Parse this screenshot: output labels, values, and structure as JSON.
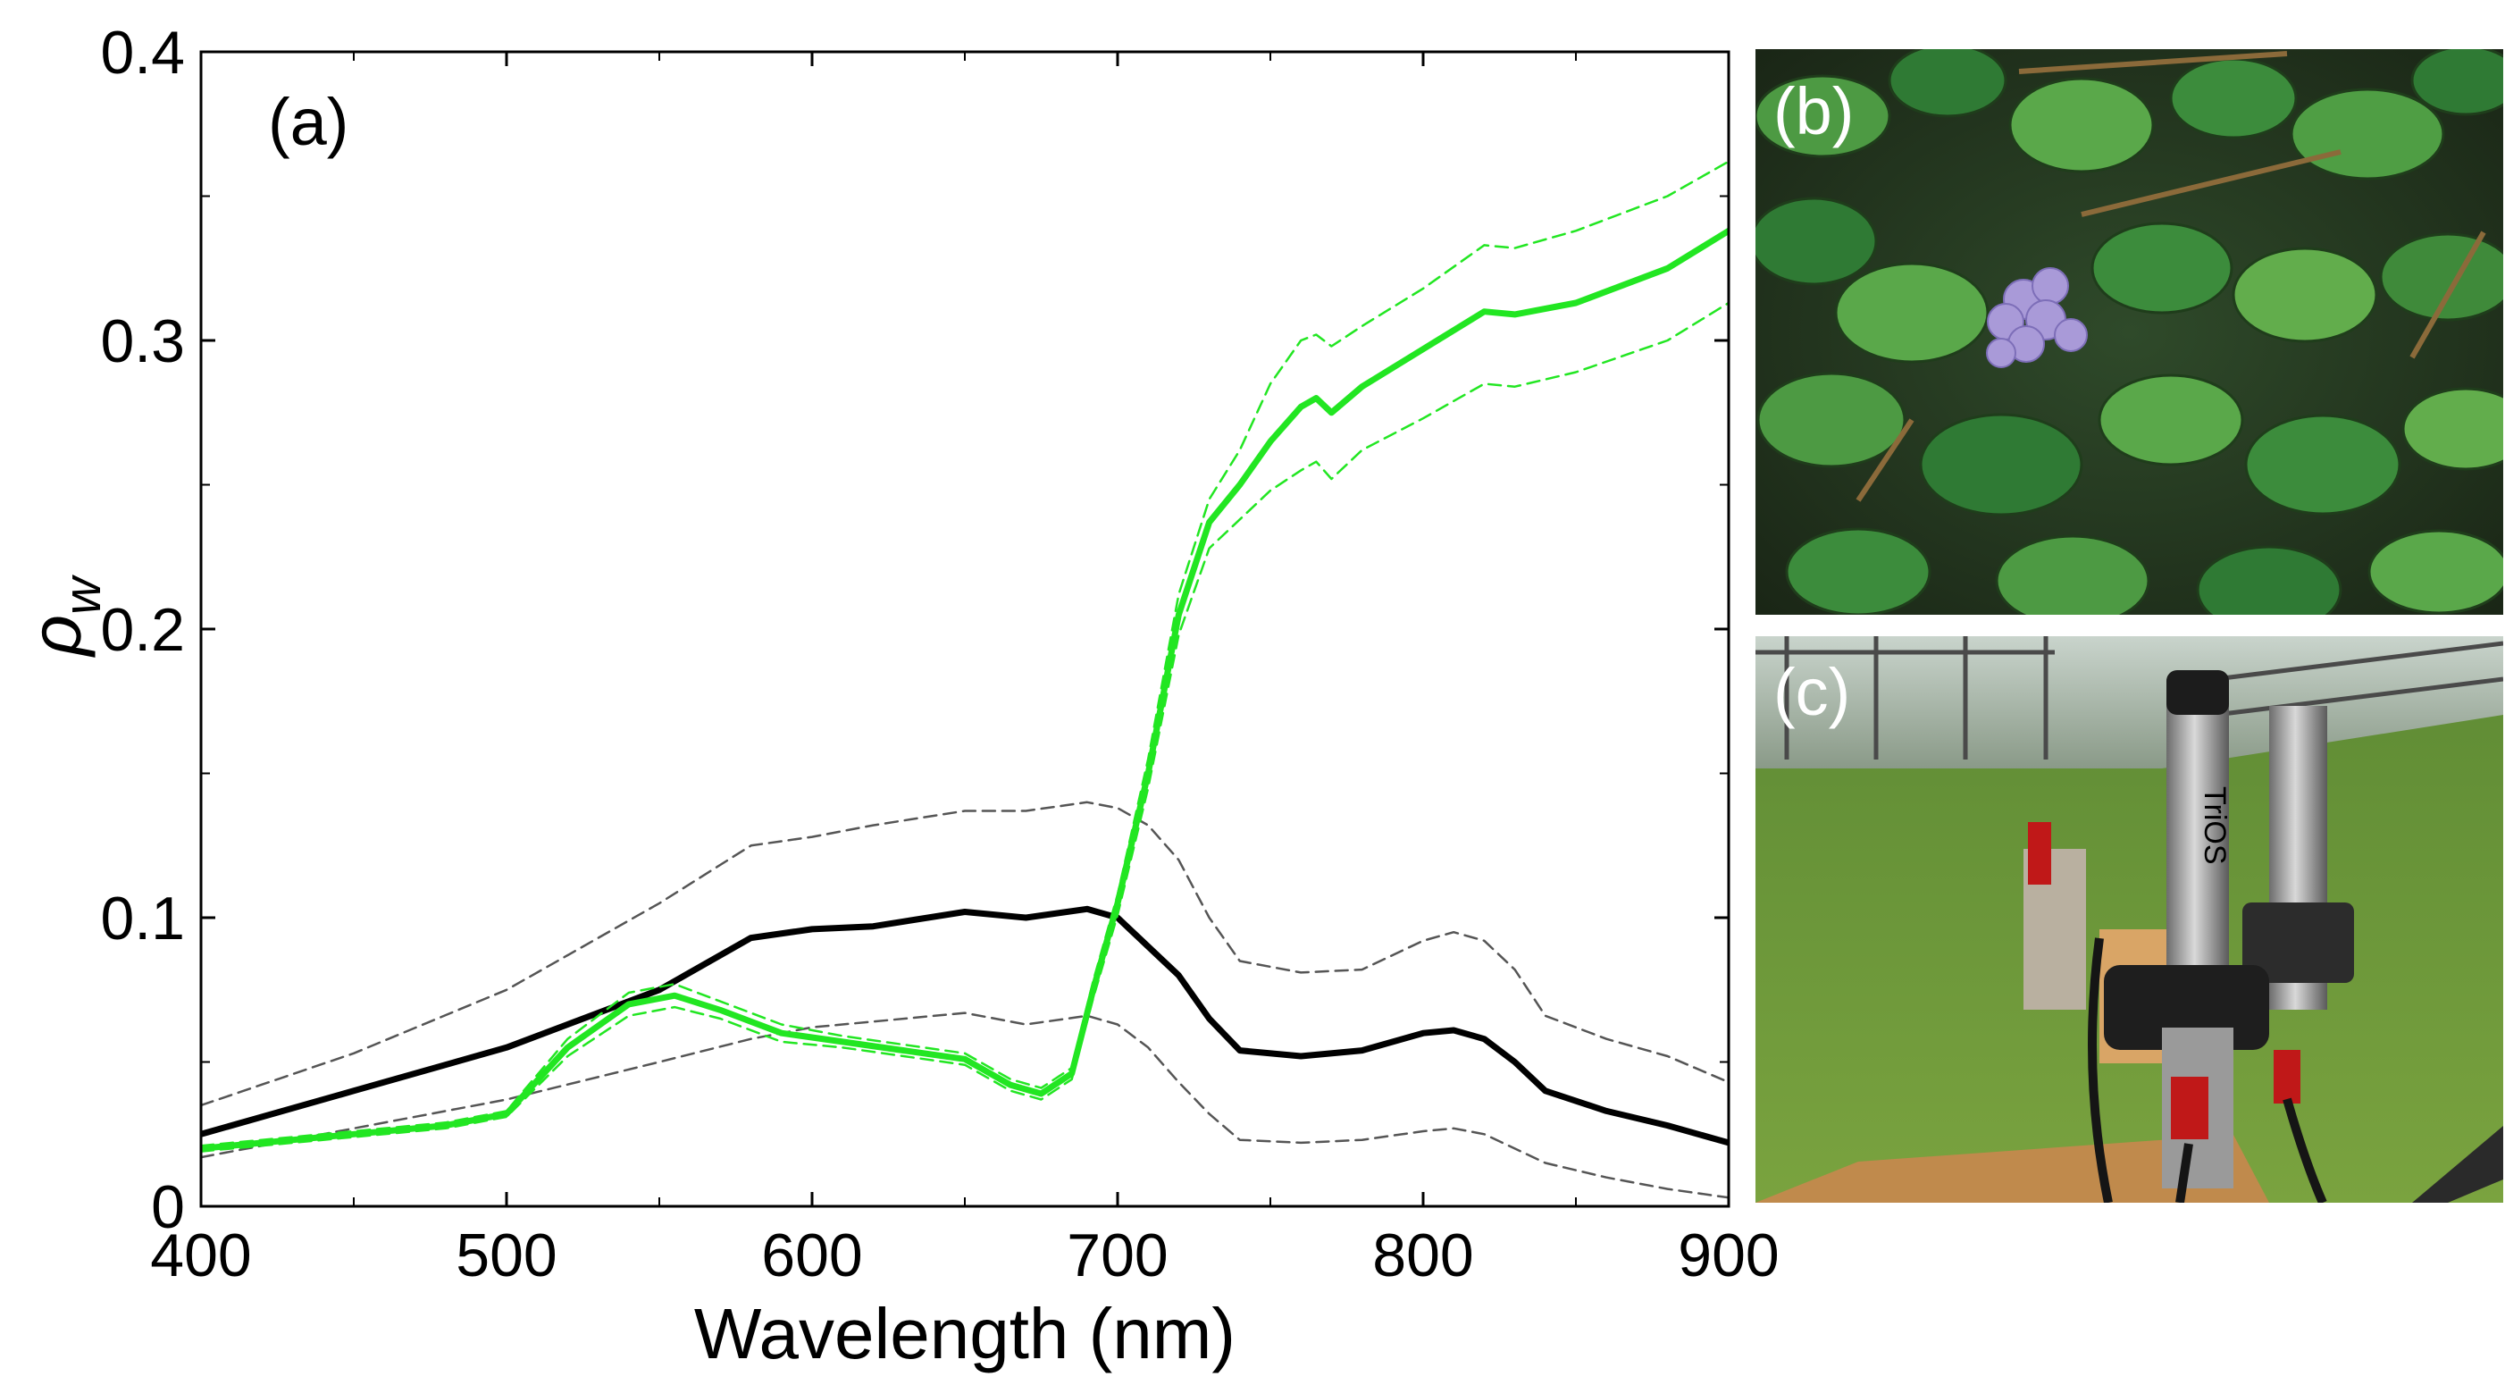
{
  "chart_data": {
    "type": "line",
    "panel_label": "(a)",
    "xlabel": "Wavelength (nm)",
    "ylabel_symbol": "ρ",
    "ylabel_subscript": "w",
    "xlim": [
      400,
      900
    ],
    "ylim": [
      0,
      0.4
    ],
    "x_ticks": [
      400,
      500,
      600,
      700,
      800,
      900
    ],
    "x_tick_labels": [
      "400",
      "500",
      "600",
      "700",
      "800",
      "900"
    ],
    "y_ticks": [
      0,
      0.1,
      0.2,
      0.3,
      0.4
    ],
    "y_tick_labels": [
      "0",
      "0.1",
      "0.2",
      "0.3",
      "0.4"
    ],
    "grid": false,
    "legend": "none",
    "series": [
      {
        "name": "black-mean",
        "color": "#000000",
        "style": "solid",
        "x": [
          400,
          450,
          500,
          550,
          580,
          600,
          620,
          650,
          670,
          690,
          700,
          710,
          720,
          730,
          740,
          760,
          780,
          800,
          810,
          820,
          830,
          840,
          860,
          880,
          900
        ],
        "y": [
          0.025,
          0.04,
          0.055,
          0.075,
          0.093,
          0.096,
          0.097,
          0.102,
          0.1,
          0.103,
          0.1,
          0.09,
          0.08,
          0.065,
          0.054,
          0.052,
          0.054,
          0.06,
          0.061,
          0.058,
          0.05,
          0.04,
          0.033,
          0.028,
          0.022
        ]
      },
      {
        "name": "black-upper",
        "color": "#555555",
        "style": "dashed",
        "x": [
          400,
          450,
          500,
          550,
          580,
          600,
          620,
          650,
          670,
          690,
          700,
          710,
          720,
          730,
          740,
          760,
          780,
          800,
          810,
          820,
          830,
          840,
          860,
          880,
          900
        ],
        "y": [
          0.035,
          0.053,
          0.075,
          0.105,
          0.125,
          0.128,
          0.132,
          0.137,
          0.137,
          0.14,
          0.138,
          0.132,
          0.12,
          0.1,
          0.085,
          0.081,
          0.082,
          0.092,
          0.095,
          0.092,
          0.082,
          0.066,
          0.058,
          0.052,
          0.043
        ]
      },
      {
        "name": "black-lower",
        "color": "#555555",
        "style": "dashed",
        "x": [
          400,
          450,
          500,
          550,
          580,
          600,
          620,
          650,
          670,
          690,
          700,
          710,
          720,
          730,
          740,
          760,
          780,
          800,
          810,
          820,
          830,
          840,
          860,
          880,
          900
        ],
        "y": [
          0.017,
          0.027,
          0.037,
          0.05,
          0.058,
          0.062,
          0.064,
          0.067,
          0.063,
          0.066,
          0.063,
          0.055,
          0.043,
          0.032,
          0.023,
          0.022,
          0.023,
          0.026,
          0.027,
          0.025,
          0.02,
          0.015,
          0.01,
          0.006,
          0.003
        ]
      },
      {
        "name": "green-mean",
        "color": "#22e622",
        "style": "solid",
        "x": [
          400,
          450,
          480,
          500,
          520,
          540,
          555,
          570,
          590,
          610,
          630,
          650,
          665,
          675,
          685,
          692,
          700,
          710,
          720,
          730,
          740,
          750,
          760,
          765,
          770,
          780,
          800,
          820,
          830,
          850,
          880,
          900
        ],
        "y": [
          0.02,
          0.025,
          0.028,
          0.032,
          0.055,
          0.07,
          0.073,
          0.068,
          0.06,
          0.057,
          0.054,
          0.051,
          0.042,
          0.039,
          0.046,
          0.075,
          0.105,
          0.15,
          0.205,
          0.237,
          0.25,
          0.265,
          0.277,
          0.28,
          0.275,
          0.284,
          0.297,
          0.31,
          0.309,
          0.313,
          0.325,
          0.338
        ]
      },
      {
        "name": "green-upper",
        "color": "#22e622",
        "style": "dashed",
        "x": [
          400,
          450,
          480,
          500,
          520,
          540,
          555,
          570,
          590,
          610,
          630,
          650,
          665,
          675,
          685,
          692,
          700,
          710,
          720,
          730,
          740,
          750,
          760,
          765,
          770,
          780,
          800,
          820,
          830,
          850,
          880,
          900
        ],
        "y": [
          0.021,
          0.026,
          0.029,
          0.033,
          0.058,
          0.074,
          0.077,
          0.071,
          0.063,
          0.059,
          0.056,
          0.053,
          0.044,
          0.041,
          0.048,
          0.078,
          0.108,
          0.155,
          0.212,
          0.245,
          0.262,
          0.285,
          0.3,
          0.302,
          0.298,
          0.305,
          0.318,
          0.333,
          0.332,
          0.338,
          0.35,
          0.362
        ]
      },
      {
        "name": "green-lower",
        "color": "#22e622",
        "style": "dashed",
        "x": [
          400,
          450,
          480,
          500,
          520,
          540,
          555,
          570,
          590,
          610,
          630,
          650,
          665,
          675,
          685,
          692,
          700,
          710,
          720,
          730,
          740,
          750,
          760,
          765,
          770,
          780,
          800,
          820,
          830,
          850,
          880,
          900
        ],
        "y": [
          0.019,
          0.024,
          0.027,
          0.031,
          0.052,
          0.066,
          0.069,
          0.065,
          0.057,
          0.055,
          0.052,
          0.049,
          0.04,
          0.037,
          0.044,
          0.072,
          0.101,
          0.145,
          0.198,
          0.228,
          0.238,
          0.248,
          0.255,
          0.258,
          0.252,
          0.262,
          0.273,
          0.285,
          0.284,
          0.289,
          0.3,
          0.313
        ]
      }
    ]
  },
  "photos": {
    "b": {
      "label": "(b)"
    },
    "c": {
      "label": "(c)",
      "sensor_text": "TriOS"
    }
  }
}
